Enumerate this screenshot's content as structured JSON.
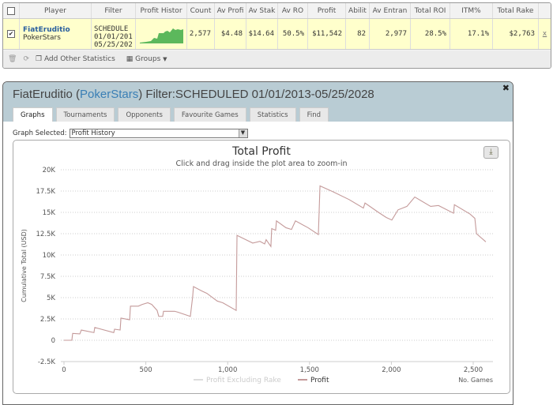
{
  "stats_table": {
    "columns": [
      "Player",
      "Filter",
      "Profit Histor",
      "Count",
      "Av Profi",
      "Av Stak",
      "Av RO",
      "Profit",
      "Abilit",
      "Av Entran",
      "Total ROI",
      "ITM%",
      "Total Rake"
    ],
    "row": {
      "checked": true,
      "player": "FiatEruditio",
      "site": "PokerStars",
      "filter": [
        "SCHEDULE",
        "01/01/201",
        "05/25/202"
      ],
      "count": "2,577",
      "av_profit": "$4.48",
      "av_stake": "$14.64",
      "av_roi": "50.5%",
      "profit": "$11,542",
      "ability": "82",
      "av_entrants": "2,977",
      "total_roi": "28.5%",
      "itm": "17.1%",
      "total_rake": "$2,763",
      "remove": "x"
    },
    "toolbar": {
      "add_label": "Add Other Statistics",
      "groups_label": "Groups"
    }
  },
  "dialog": {
    "player": "FiatEruditio",
    "site": "PokerStars",
    "filter_text": "Filter:SCHEDULED 01/01/2013-05/25/2028",
    "tabs": [
      "Graphs",
      "Tournaments",
      "Opponents",
      "Favourite Games",
      "Statistics",
      "Find"
    ],
    "active_tab": "Graphs",
    "graph_selected_label": "Graph Selected:",
    "graph_selected_value": "Profit History"
  },
  "chart_data": {
    "type": "line",
    "title": "Total Profit",
    "subtitle": "Click and drag inside the plot area to zoom-in",
    "xlabel": "No. Games",
    "ylabel": "Cumulative Total (USD)",
    "xlim": [
      0,
      2630
    ],
    "ylim": [
      -2500,
      20000
    ],
    "xticks": [
      "0",
      "500",
      "1,000",
      "1,500",
      "2,000",
      "2,500"
    ],
    "xtick_values": [
      0,
      500,
      1000,
      1500,
      2000,
      2500
    ],
    "yticks": [
      "-2.5K",
      "0",
      "2.5K",
      "5K",
      "7.5K",
      "10K",
      "12.5K",
      "15K",
      "17.5K",
      "20K"
    ],
    "ytick_values": [
      -2500,
      0,
      2500,
      5000,
      7500,
      10000,
      12500,
      15000,
      17500,
      20000
    ],
    "grid": true,
    "legend_position": "bottom",
    "series": [
      {
        "name": "Profit Excluding Rake",
        "visible": false,
        "color": "#dddddd",
        "points": []
      },
      {
        "name": "Profit",
        "visible": true,
        "color": "#c49a9a",
        "points": [
          [
            0,
            0
          ],
          [
            48,
            0
          ],
          [
            53,
            800
          ],
          [
            97,
            750
          ],
          [
            106,
            1200
          ],
          [
            183,
            900
          ],
          [
            188,
            1500
          ],
          [
            304,
            900
          ],
          [
            309,
            1300
          ],
          [
            343,
            1200
          ],
          [
            348,
            2600
          ],
          [
            401,
            2400
          ],
          [
            406,
            4000
          ],
          [
            454,
            4000
          ],
          [
            478,
            4200
          ],
          [
            512,
            4400
          ],
          [
            536,
            4200
          ],
          [
            569,
            3500
          ],
          [
            579,
            2800
          ],
          [
            603,
            2800
          ],
          [
            608,
            3400
          ],
          [
            676,
            3400
          ],
          [
            695,
            3300
          ],
          [
            772,
            2800
          ],
          [
            786,
            5100
          ],
          [
            791,
            6300
          ],
          [
            840,
            5800
          ],
          [
            873,
            5500
          ],
          [
            936,
            4600
          ],
          [
            970,
            4400
          ],
          [
            1052,
            3500
          ],
          [
            1057,
            12300
          ],
          [
            1100,
            11900
          ],
          [
            1153,
            11400
          ],
          [
            1197,
            11600
          ],
          [
            1226,
            11300
          ],
          [
            1235,
            11800
          ],
          [
            1264,
            11000
          ],
          [
            1269,
            13100
          ],
          [
            1293,
            12900
          ],
          [
            1298,
            14000
          ],
          [
            1356,
            13200
          ],
          [
            1390,
            13000
          ],
          [
            1414,
            14000
          ],
          [
            1491,
            13200
          ],
          [
            1554,
            12400
          ],
          [
            1564,
            18100
          ],
          [
            1646,
            17400
          ],
          [
            1742,
            16500
          ],
          [
            1829,
            15500
          ],
          [
            1839,
            16100
          ],
          [
            1921,
            15000
          ],
          [
            1969,
            14400
          ],
          [
            2003,
            14100
          ],
          [
            2041,
            15300
          ],
          [
            2095,
            15700
          ],
          [
            2143,
            16800
          ],
          [
            2240,
            15700
          ],
          [
            2288,
            15800
          ],
          [
            2380,
            14900
          ],
          [
            2385,
            15900
          ],
          [
            2481,
            14800
          ],
          [
            2510,
            14300
          ],
          [
            2520,
            12500
          ],
          [
            2577,
            11542
          ]
        ]
      }
    ]
  }
}
